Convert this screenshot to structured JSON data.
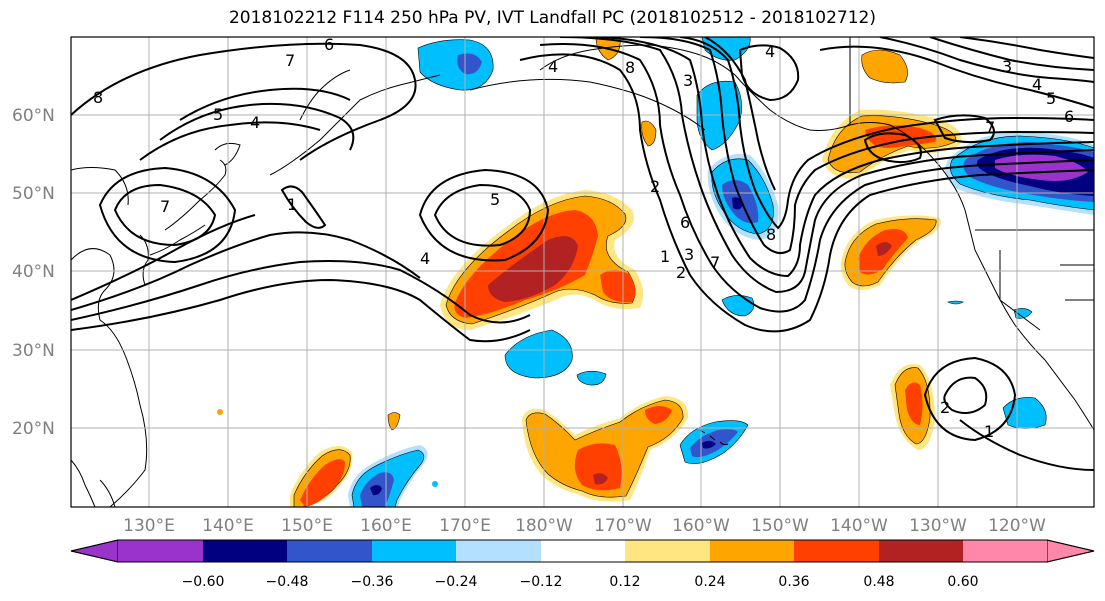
{
  "title": "2018102212 F114 250 hPa PV, IVT Landfall PC (2018102512 - 2018102712)",
  "lat_labels": [
    "60°N",
    "50°N",
    "40°N",
    "30°N",
    "20°N"
  ],
  "lon_labels": [
    "130°E",
    "140°E",
    "150°E",
    "160°E",
    "170°E",
    "180°W",
    "170°W",
    "160°W",
    "150°W",
    "140°W",
    "130°W",
    "120°W"
  ],
  "colorbar": {
    "ticks": [
      "−0.60",
      "−0.48",
      "−0.36",
      "−0.24",
      "−0.12",
      "0.12",
      "0.24",
      "0.36",
      "0.48",
      "0.60"
    ],
    "colors": [
      "#9933cc",
      "#000080",
      "#3355cc",
      "#00bfff",
      "#b3e0ff",
      "#ffffff",
      "#ffe680",
      "#ffa500",
      "#ff4000",
      "#b22222",
      "#ff88aa"
    ]
  },
  "contour_labels": [
    "6",
    "7",
    "8",
    "5",
    "4",
    "7",
    "1",
    "5",
    "4",
    "8",
    "4",
    "3",
    "4",
    "2",
    "6",
    "1",
    "2",
    "7",
    "8",
    "3",
    "4",
    "5",
    "6",
    "7",
    "3",
    "2",
    "1"
  ],
  "anomaly_colors": {
    "light_blue": "#b3e0ff",
    "cyan": "#00bfff",
    "blue": "#3355cc",
    "navy": "#000080",
    "purple": "#9933cc",
    "yellow": "#ffe680",
    "orange": "#ffa500",
    "red_orange": "#ff4000",
    "dark_red": "#b22222"
  }
}
